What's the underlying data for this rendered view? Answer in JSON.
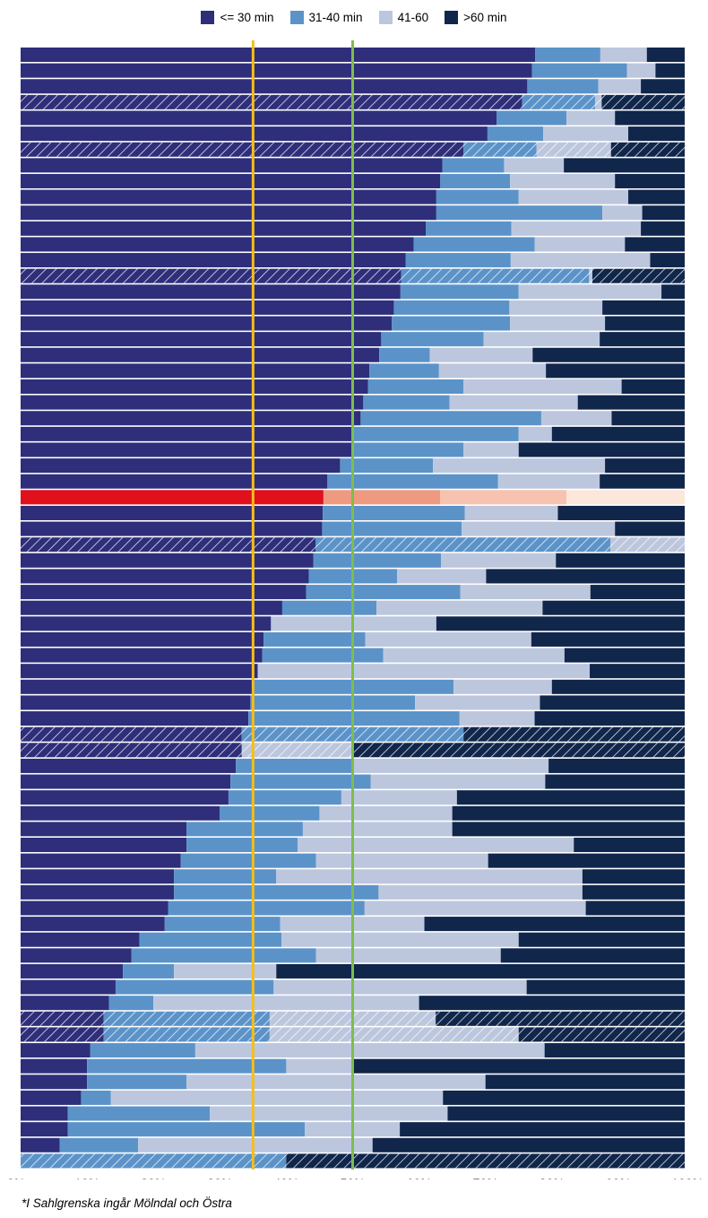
{
  "chart_data": {
    "type": "bar",
    "orientation": "horizontal",
    "stacked": true,
    "series": [
      {
        "name": "<= 30 min",
        "color": "#2e2e7a"
      },
      {
        "name": "31-40 min",
        "color": "#5b93c9"
      },
      {
        "name": "41-60",
        "color": "#bcc7de"
      },
      {
        "name": ">60 min",
        "color": "#10264b"
      }
    ],
    "highlight_colors": [
      "#e0101c",
      "#ee9a80",
      "#f7c2b0",
      "#fde6da"
    ],
    "reference_lines": [
      {
        "value": 35,
        "color": "#f3be1e"
      },
      {
        "value": 50,
        "color": "#7fbd4a"
      }
    ],
    "xlim": [
      0,
      100
    ],
    "x_ticks": [
      "0%",
      "10%",
      "20%",
      "30%",
      "40%",
      "50%",
      "60%",
      "70%",
      "80%",
      "90%",
      "100%"
    ],
    "bars": [
      {
        "values": [
          77.5,
          9.8,
          7.0,
          5.7
        ]
      },
      {
        "values": [
          77.0,
          14.3,
          4.3,
          4.4
        ]
      },
      {
        "values": [
          76.3,
          10.7,
          6.4,
          6.6
        ]
      },
      {
        "values": [
          75.5,
          11.0,
          1.0,
          12.5
        ],
        "hatched": true
      },
      {
        "values": [
          71.7,
          10.5,
          7.3,
          10.5
        ]
      },
      {
        "values": [
          70.3,
          8.4,
          12.8,
          8.5
        ]
      },
      {
        "values": [
          66.7,
          11.0,
          11.2,
          11.1
        ],
        "hatched": true
      },
      {
        "values": [
          63.5,
          9.3,
          9.0,
          18.2
        ]
      },
      {
        "values": [
          63.2,
          10.5,
          15.8,
          10.5
        ]
      },
      {
        "values": [
          62.6,
          12.4,
          16.5,
          8.5
        ]
      },
      {
        "values": [
          62.6,
          25.0,
          6.0,
          6.4
        ]
      },
      {
        "values": [
          61.0,
          12.9,
          19.5,
          6.6
        ]
      },
      {
        "values": [
          59.2,
          18.2,
          13.6,
          9.0
        ]
      },
      {
        "values": [
          58.0,
          15.8,
          21.0,
          5.2
        ]
      },
      {
        "values": [
          57.3,
          28.3,
          0.5,
          13.9
        ],
        "hatched": true
      },
      {
        "values": [
          57.2,
          17.8,
          21.5,
          3.5
        ]
      },
      {
        "values": [
          56.2,
          17.4,
          14.0,
          12.4
        ]
      },
      {
        "values": [
          55.9,
          17.8,
          14.3,
          12.0
        ]
      },
      {
        "values": [
          54.3,
          15.4,
          17.5,
          12.8
        ]
      },
      {
        "values": [
          54.0,
          7.6,
          15.5,
          22.9
        ]
      },
      {
        "values": [
          52.5,
          10.5,
          16.1,
          20.9
        ]
      },
      {
        "values": [
          52.3,
          14.4,
          23.8,
          9.5
        ]
      },
      {
        "values": [
          51.6,
          13.0,
          19.3,
          16.1
        ]
      },
      {
        "values": [
          51.2,
          27.2,
          10.6,
          11.0
        ]
      },
      {
        "values": [
          50.0,
          25.0,
          5.0,
          20.0
        ]
      },
      {
        "values": [
          50.0,
          16.7,
          8.3,
          25.0
        ]
      },
      {
        "values": [
          48.1,
          14.0,
          25.9,
          12.0
        ]
      },
      {
        "values": [
          46.2,
          25.7,
          15.3,
          12.8
        ]
      },
      {
        "values": [
          45.6,
          17.6,
          19.0,
          17.8
        ],
        "highlight": true
      },
      {
        "values": [
          45.5,
          21.4,
          14.0,
          19.1
        ]
      },
      {
        "values": [
          45.4,
          21.0,
          23.1,
          10.5
        ]
      },
      {
        "values": [
          44.4,
          44.4,
          11.2,
          0.0
        ],
        "hatched": true
      },
      {
        "values": [
          44.1,
          19.2,
          17.3,
          19.4
        ]
      },
      {
        "values": [
          43.4,
          13.3,
          13.4,
          29.9
        ]
      },
      {
        "values": [
          43.0,
          23.2,
          19.6,
          14.2
        ]
      },
      {
        "values": [
          39.4,
          14.2,
          25.0,
          21.4
        ]
      },
      {
        "values": [
          37.7,
          0.0,
          24.9,
          37.4
        ]
      },
      {
        "values": [
          36.6,
          15.3,
          25.0,
          23.1
        ]
      },
      {
        "values": [
          36.4,
          18.2,
          27.3,
          18.1
        ]
      },
      {
        "values": [
          35.7,
          0.0,
          50.0,
          14.3
        ]
      },
      {
        "values": [
          35.0,
          30.2,
          14.8,
          20.0
        ]
      },
      {
        "values": [
          34.6,
          24.8,
          18.8,
          21.8
        ]
      },
      {
        "values": [
          34.3,
          31.8,
          11.3,
          22.6
        ]
      },
      {
        "values": [
          33.3,
          33.4,
          0.0,
          33.3
        ],
        "hatched": true
      },
      {
        "values": [
          33.3,
          0.0,
          16.7,
          50.0
        ],
        "hatched": true
      },
      {
        "values": [
          32.4,
          17.6,
          29.5,
          20.5
        ]
      },
      {
        "values": [
          31.6,
          21.1,
          26.3,
          21.0
        ]
      },
      {
        "values": [
          31.3,
          17.0,
          17.4,
          34.3
        ]
      },
      {
        "values": [
          30.0,
          15.0,
          20.0,
          35.0
        ]
      },
      {
        "values": [
          25.0,
          17.5,
          22.5,
          35.0
        ]
      },
      {
        "values": [
          25.0,
          16.7,
          41.6,
          16.7
        ]
      },
      {
        "values": [
          24.1,
          20.4,
          25.9,
          29.6
        ]
      },
      {
        "values": [
          23.1,
          15.4,
          46.1,
          15.4
        ]
      },
      {
        "values": [
          23.1,
          30.8,
          30.7,
          15.4
        ]
      },
      {
        "values": [
          22.2,
          29.6,
          33.3,
          14.9
        ]
      },
      {
        "values": [
          21.7,
          17.4,
          21.7,
          39.2
        ]
      },
      {
        "values": [
          17.9,
          21.4,
          35.7,
          25.0
        ]
      },
      {
        "values": [
          16.7,
          27.8,
          27.8,
          27.7
        ]
      },
      {
        "values": [
          15.4,
          7.7,
          15.4,
          61.5
        ]
      },
      {
        "values": [
          14.3,
          23.8,
          38.1,
          23.8
        ]
      },
      {
        "values": [
          13.3,
          6.7,
          40.0,
          40.0
        ]
      },
      {
        "values": [
          12.5,
          25.0,
          25.0,
          37.5
        ],
        "hatched": true
      },
      {
        "values": [
          12.5,
          25.0,
          37.5,
          25.0
        ],
        "hatched": true
      },
      {
        "values": [
          10.5,
          15.8,
          52.6,
          21.1
        ]
      },
      {
        "values": [
          10.0,
          30.0,
          10.0,
          50.0
        ]
      },
      {
        "values": [
          10.0,
          15.0,
          45.0,
          30.0
        ]
      },
      {
        "values": [
          9.1,
          4.5,
          50.0,
          36.4
        ]
      },
      {
        "values": [
          7.1,
          21.4,
          35.8,
          35.7
        ]
      },
      {
        "values": [
          7.1,
          35.7,
          14.3,
          42.9
        ]
      },
      {
        "values": [
          5.9,
          11.8,
          35.3,
          47.0
        ]
      },
      {
        "values": [
          0.0,
          40.0,
          0.0,
          60.0
        ],
        "hatched": true
      }
    ],
    "footnote": "*I Sahlgrenska ingår Mölndal och Östra"
  }
}
